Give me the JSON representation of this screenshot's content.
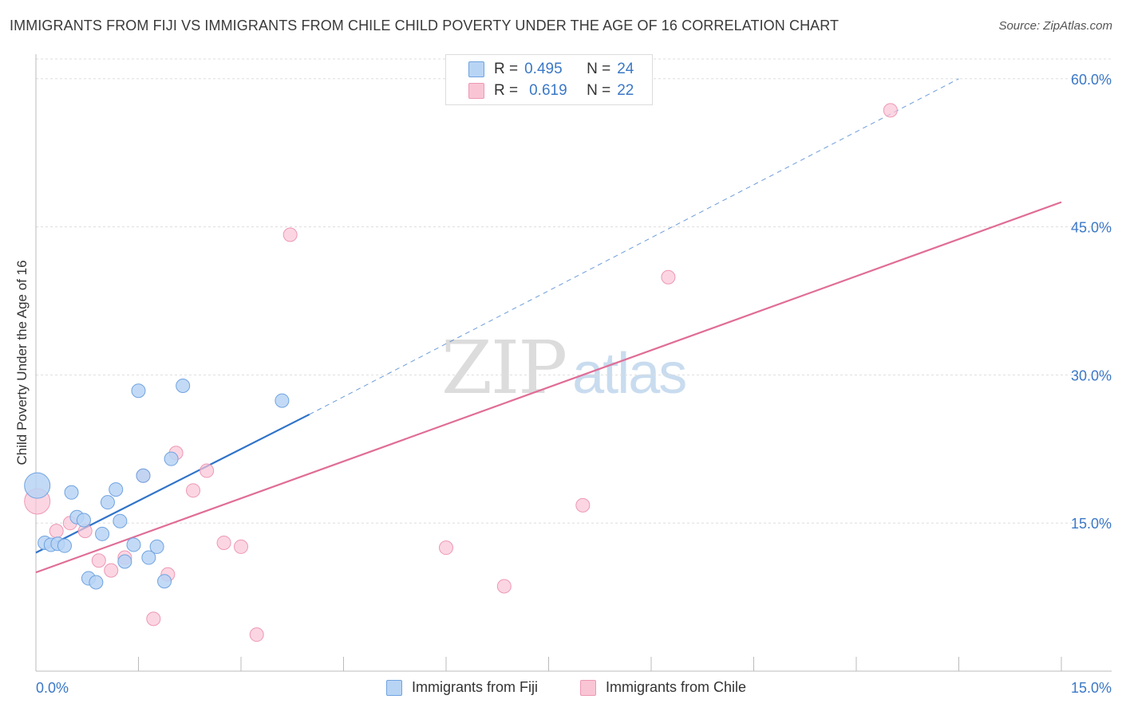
{
  "title": "IMMIGRANTS FROM FIJI VS IMMIGRANTS FROM CHILE CHILD POVERTY UNDER THE AGE OF 16 CORRELATION CHART",
  "source": "Source: ZipAtlas.com",
  "watermark": {
    "zip": "ZIP",
    "atlas": "atlas"
  },
  "colors": {
    "fiji_fill": "#b8d4f5",
    "fiji_stroke": "#6fa3e0",
    "fiji_line": "#2f73c9",
    "chile_fill": "#f9c5d5",
    "chile_stroke": "#ee98b4",
    "chile_line": "#e06d96",
    "axis_text": "#3b78c6",
    "grid": "#dddddd"
  },
  "chart_data": {
    "type": "scatter",
    "xlabel": "",
    "ylabel": "Child Poverty Under the Age of 16",
    "xlim": [
      0,
      15
    ],
    "ylim": [
      0,
      62
    ],
    "x_tick_labels": [
      "0.0%",
      "15.0%"
    ],
    "y_ticks": [
      15,
      30,
      45,
      60
    ],
    "y_tick_labels": [
      "15.0%",
      "30.0%",
      "45.0%",
      "60.0%"
    ],
    "grid": true,
    "legend_stats": [
      {
        "r_label": "R =",
        "r_value": "0.495",
        "n_label": "N =",
        "n_value": "24"
      },
      {
        "r_label": "R =",
        "r_value": "0.619",
        "n_label": "N =",
        "n_value": "22"
      }
    ],
    "series": [
      {
        "name": "Immigrants from Fiji",
        "points": [
          {
            "x": 0.02,
            "y": 18.8,
            "big": true
          },
          {
            "x": 0.13,
            "y": 13.0
          },
          {
            "x": 0.22,
            "y": 12.8
          },
          {
            "x": 0.32,
            "y": 12.9
          },
          {
            "x": 0.42,
            "y": 12.7
          },
          {
            "x": 0.52,
            "y": 18.1
          },
          {
            "x": 0.6,
            "y": 15.6
          },
          {
            "x": 0.7,
            "y": 15.3
          },
          {
            "x": 0.77,
            "y": 9.4
          },
          {
            "x": 0.88,
            "y": 9.0
          },
          {
            "x": 0.97,
            "y": 13.9
          },
          {
            "x": 1.05,
            "y": 17.1
          },
          {
            "x": 1.17,
            "y": 18.4
          },
          {
            "x": 1.23,
            "y": 15.2
          },
          {
            "x": 1.3,
            "y": 11.1
          },
          {
            "x": 1.43,
            "y": 12.8
          },
          {
            "x": 1.5,
            "y": 28.4
          },
          {
            "x": 1.57,
            "y": 19.8
          },
          {
            "x": 1.65,
            "y": 11.5
          },
          {
            "x": 1.77,
            "y": 12.6
          },
          {
            "x": 1.88,
            "y": 9.1
          },
          {
            "x": 1.98,
            "y": 21.5
          },
          {
            "x": 2.15,
            "y": 28.9
          },
          {
            "x": 3.6,
            "y": 27.4
          }
        ],
        "trend": {
          "x0": 0,
          "y0": 12.0,
          "x1": 4.0,
          "y1": 26.0,
          "dash_to_x": 13.5,
          "dash_to_y": 60.0
        }
      },
      {
        "name": "Immigrants from Chile",
        "points": [
          {
            "x": 0.02,
            "y": 17.2,
            "big": true
          },
          {
            "x": 0.3,
            "y": 14.2
          },
          {
            "x": 0.5,
            "y": 15.0
          },
          {
            "x": 0.72,
            "y": 14.2
          },
          {
            "x": 0.92,
            "y": 11.2
          },
          {
            "x": 1.1,
            "y": 10.2
          },
          {
            "x": 1.3,
            "y": 11.5
          },
          {
            "x": 1.57,
            "y": 19.8
          },
          {
            "x": 1.72,
            "y": 5.3
          },
          {
            "x": 1.93,
            "y": 9.8
          },
          {
            "x": 2.05,
            "y": 22.1
          },
          {
            "x": 2.3,
            "y": 18.3
          },
          {
            "x": 2.5,
            "y": 20.3
          },
          {
            "x": 2.75,
            "y": 13.0
          },
          {
            "x": 3.0,
            "y": 12.6
          },
          {
            "x": 3.23,
            "y": 3.7
          },
          {
            "x": 3.72,
            "y": 44.2
          },
          {
            "x": 6.0,
            "y": 12.5
          },
          {
            "x": 6.85,
            "y": 8.6
          },
          {
            "x": 8.0,
            "y": 16.8
          },
          {
            "x": 9.25,
            "y": 39.9
          },
          {
            "x": 12.5,
            "y": 56.8
          }
        ],
        "trend": {
          "x0": 0,
          "y0": 10.0,
          "x1": 15.0,
          "y1": 47.5
        }
      }
    ]
  }
}
